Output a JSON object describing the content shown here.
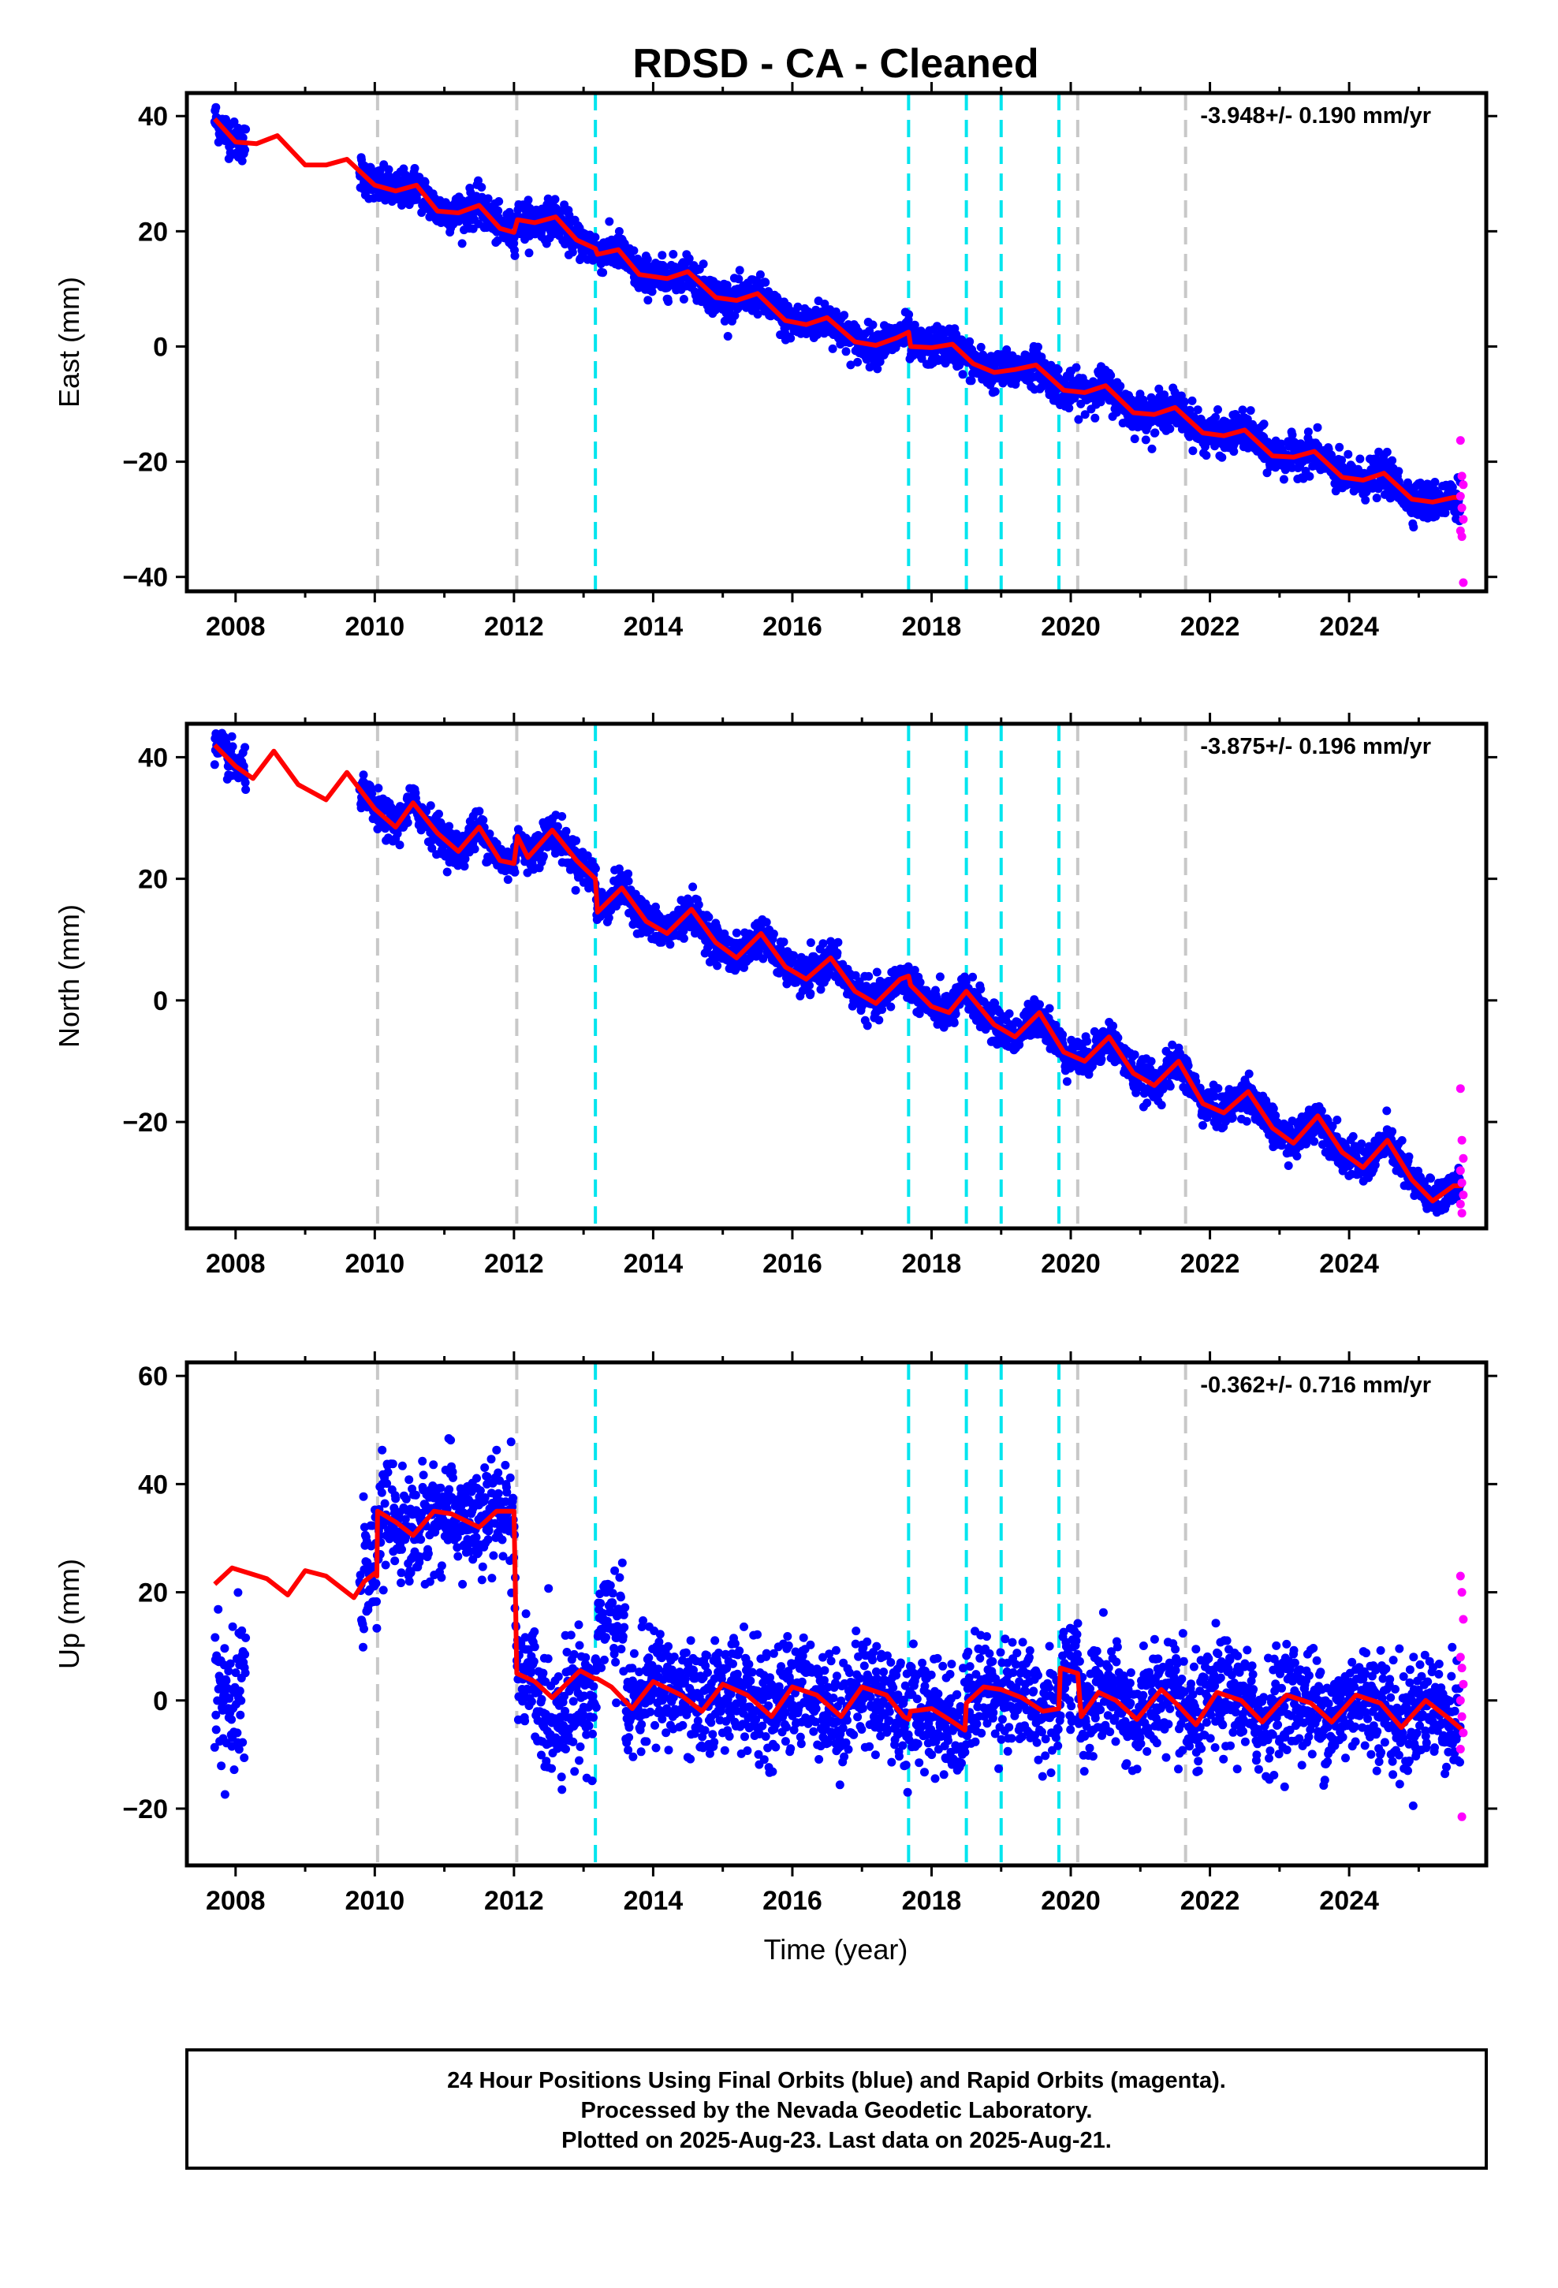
{
  "title": "RDSD  - CA - Cleaned",
  "x_axis_title": "Time (year)",
  "footer": {
    "line1": "24 Hour Positions Using Final Orbits (blue) and Rapid Orbits (magenta).",
    "line2": "Processed by the Nevada Geodetic Laboratory.",
    "line3": "Plotted on 2025-Aug-23. Last data on 2025-Aug-21."
  },
  "colors": {
    "final_points": "#0000ff",
    "rapid_points": "#ff00ff",
    "model_line": "#ff0000",
    "antenna_change_lines": "#00e5ee",
    "equipment_lines": "#c8c8c8"
  },
  "event_lines": {
    "cyan": [
      2013.17,
      2017.67,
      2018.5,
      2019.0,
      2019.83
    ],
    "gray": [
      2010.04,
      2012.04,
      2020.1,
      2021.65
    ]
  },
  "chart_data": [
    {
      "type": "scatter",
      "component": "East",
      "ylabel": "East (mm)",
      "rate_text": "-3.948+/- 0.190 mm/yr",
      "xlim": [
        2007.3,
        2025.97
      ],
      "ylim": [
        -42.5,
        44
      ],
      "x_ticks": [
        2008,
        2010,
        2012,
        2014,
        2016,
        2018,
        2020,
        2022,
        2024
      ],
      "y_ticks": [
        -40,
        -20,
        0,
        20,
        40
      ],
      "rate_mm_per_yr": -3.948,
      "model_knots": [
        [
          2007.7,
          39.5
        ],
        [
          2008.0,
          35.5
        ],
        [
          2008.3,
          35.2
        ],
        [
          2008.6,
          36.6
        ],
        [
          2009.0,
          31.5
        ],
        [
          2009.3,
          31.5
        ],
        [
          2009.6,
          32.5
        ],
        [
          2010.0,
          28.0
        ],
        [
          2010.3,
          27.0
        ],
        [
          2010.6,
          28.0
        ],
        [
          2010.9,
          23.5
        ],
        [
          2011.2,
          23.2
        ],
        [
          2011.5,
          24.5
        ],
        [
          2011.8,
          20.5
        ],
        [
          2012.0,
          19.8
        ],
        [
          2012.05,
          22.0
        ],
        [
          2012.3,
          21.5
        ],
        [
          2012.6,
          22.5
        ],
        [
          2012.9,
          18.5
        ],
        [
          2013.17,
          17.0
        ],
        [
          2013.2,
          16.0
        ],
        [
          2013.5,
          16.8
        ],
        [
          2013.8,
          12.5
        ],
        [
          2014.2,
          11.8
        ],
        [
          2014.5,
          13.0
        ],
        [
          2014.9,
          8.5
        ],
        [
          2015.2,
          8.0
        ],
        [
          2015.5,
          9.2
        ],
        [
          2015.9,
          4.5
        ],
        [
          2016.2,
          3.8
        ],
        [
          2016.5,
          5.0
        ],
        [
          2016.9,
          0.8
        ],
        [
          2017.2,
          0.2
        ],
        [
          2017.5,
          1.5
        ],
        [
          2017.67,
          2.5
        ],
        [
          2017.7,
          0.0
        ],
        [
          2018.0,
          -0.2
        ],
        [
          2018.3,
          0.4
        ],
        [
          2018.6,
          -3.0
        ],
        [
          2018.9,
          -4.5
        ],
        [
          2019.2,
          -4.0
        ],
        [
          2019.5,
          -3.2
        ],
        [
          2019.9,
          -7.6
        ],
        [
          2020.2,
          -8.0
        ],
        [
          2020.5,
          -6.8
        ],
        [
          2020.9,
          -11.5
        ],
        [
          2021.2,
          -11.8
        ],
        [
          2021.5,
          -10.6
        ],
        [
          2021.9,
          -15.0
        ],
        [
          2022.2,
          -15.5
        ],
        [
          2022.5,
          -14.5
        ],
        [
          2022.9,
          -19.0
        ],
        [
          2023.2,
          -19.2
        ],
        [
          2023.5,
          -18.2
        ],
        [
          2023.9,
          -22.7
        ],
        [
          2024.2,
          -23.2
        ],
        [
          2024.5,
          -22.0
        ],
        [
          2024.9,
          -26.5
        ],
        [
          2025.2,
          -27.0
        ],
        [
          2025.5,
          -26.2
        ],
        [
          2025.63,
          -26.2
        ]
      ],
      "final_scatter_mm": 1.6,
      "rapid_points": [
        -16.3,
        -22.5,
        -24.0,
        -26.0,
        -28.0,
        -30.0,
        -32.0,
        -33.0,
        -41.0
      ]
    },
    {
      "type": "scatter",
      "component": "North",
      "ylabel": "North (mm)",
      "rate_text": "-3.875+/- 0.196 mm/yr",
      "xlim": [
        2007.3,
        2025.97
      ],
      "ylim": [
        -37.5,
        45.5
      ],
      "x_ticks": [
        2008,
        2010,
        2012,
        2014,
        2016,
        2018,
        2020,
        2022,
        2024
      ],
      "y_ticks": [
        -20,
        0,
        20,
        40
      ],
      "rate_mm_per_yr": -3.875,
      "model_knots": [
        [
          2007.7,
          42.0
        ],
        [
          2008.0,
          38.5
        ],
        [
          2008.25,
          36.5
        ],
        [
          2008.55,
          41.0
        ],
        [
          2008.9,
          35.5
        ],
        [
          2009.3,
          33.0
        ],
        [
          2009.6,
          37.5
        ],
        [
          2010.0,
          31.5
        ],
        [
          2010.3,
          28.5
        ],
        [
          2010.55,
          32.5
        ],
        [
          2010.9,
          27.5
        ],
        [
          2011.2,
          24.5
        ],
        [
          2011.5,
          28.5
        ],
        [
          2011.8,
          23.0
        ],
        [
          2012.0,
          22.5
        ],
        [
          2012.05,
          27.0
        ],
        [
          2012.2,
          23.5
        ],
        [
          2012.55,
          28.0
        ],
        [
          2012.9,
          23.0
        ],
        [
          2013.17,
          20.0
        ],
        [
          2013.2,
          14.5
        ],
        [
          2013.55,
          18.5
        ],
        [
          2013.9,
          13.0
        ],
        [
          2014.2,
          11.0
        ],
        [
          2014.55,
          15.0
        ],
        [
          2014.9,
          9.5
        ],
        [
          2015.2,
          7.0
        ],
        [
          2015.55,
          11.0
        ],
        [
          2015.9,
          5.5
        ],
        [
          2016.2,
          3.5
        ],
        [
          2016.55,
          7.0
        ],
        [
          2016.9,
          1.5
        ],
        [
          2017.2,
          -0.5
        ],
        [
          2017.55,
          3.5
        ],
        [
          2017.67,
          4.0
        ],
        [
          2017.7,
          2.5
        ],
        [
          2018.0,
          -1.0
        ],
        [
          2018.25,
          -2.0
        ],
        [
          2018.5,
          1.5
        ],
        [
          2018.9,
          -4.0
        ],
        [
          2019.2,
          -6.0
        ],
        [
          2019.55,
          -2.0
        ],
        [
          2019.9,
          -8.5
        ],
        [
          2020.2,
          -10.0
        ],
        [
          2020.55,
          -6.0
        ],
        [
          2020.9,
          -12.0
        ],
        [
          2021.2,
          -14.0
        ],
        [
          2021.55,
          -10.0
        ],
        [
          2021.9,
          -17.0
        ],
        [
          2022.2,
          -18.5
        ],
        [
          2022.55,
          -15.0
        ],
        [
          2022.9,
          -21.0
        ],
        [
          2023.2,
          -23.5
        ],
        [
          2023.55,
          -19.0
        ],
        [
          2023.9,
          -25.0
        ],
        [
          2024.2,
          -27.5
        ],
        [
          2024.55,
          -23.0
        ],
        [
          2024.9,
          -29.5
        ],
        [
          2025.2,
          -33.0
        ],
        [
          2025.5,
          -30.5
        ],
        [
          2025.63,
          -30.5
        ]
      ],
      "final_scatter_mm": 1.5,
      "rapid_points": [
        -14.5,
        -23.0,
        -26.0,
        -28.0,
        -30.0,
        -32.0,
        -33.5,
        -35.0
      ]
    },
    {
      "type": "scatter",
      "component": "Up",
      "ylabel": "Up (mm)",
      "rate_text": "-0.362+/- 0.716 mm/yr",
      "xlim": [
        2007.3,
        2025.97
      ],
      "ylim": [
        -30.5,
        62.5
      ],
      "x_ticks": [
        2008,
        2010,
        2012,
        2014,
        2016,
        2018,
        2020,
        2022,
        2024
      ],
      "y_ticks": [
        -20,
        0,
        20,
        40,
        60
      ],
      "rate_mm_per_yr": -0.362,
      "model_knots": [
        [
          2007.7,
          21.5
        ],
        [
          2007.95,
          24.5
        ],
        [
          2008.2,
          23.5
        ],
        [
          2008.45,
          22.5
        ],
        [
          2008.75,
          19.5
        ],
        [
          2009.0,
          24.0
        ],
        [
          2009.3,
          23.0
        ],
        [
          2009.55,
          20.5
        ],
        [
          2009.7,
          19.0
        ],
        [
          2009.85,
          22.0
        ],
        [
          2010.0,
          23.5
        ],
        [
          2010.03,
          23.0
        ],
        [
          2010.04,
          35.0
        ],
        [
          2010.3,
          33.0
        ],
        [
          2010.55,
          30.5
        ],
        [
          2010.85,
          35.0
        ],
        [
          2011.1,
          34.5
        ],
        [
          2011.5,
          32.0
        ],
        [
          2011.75,
          35.0
        ],
        [
          2012.0,
          35.0
        ],
        [
          2012.04,
          5.0
        ],
        [
          2012.3,
          3.5
        ],
        [
          2012.55,
          0.5
        ],
        [
          2012.95,
          5.5
        ],
        [
          2013.17,
          4.0
        ],
        [
          2013.2,
          4.0
        ],
        [
          2013.4,
          2.5
        ],
        [
          2013.7,
          -1.5
        ],
        [
          2014.0,
          3.5
        ],
        [
          2014.4,
          1.0
        ],
        [
          2014.7,
          -2.0
        ],
        [
          2015.0,
          3.0
        ],
        [
          2015.35,
          1.0
        ],
        [
          2015.7,
          -3.0
        ],
        [
          2016.0,
          2.5
        ],
        [
          2016.35,
          1.0
        ],
        [
          2016.7,
          -3.0
        ],
        [
          2017.0,
          2.5
        ],
        [
          2017.35,
          1.0
        ],
        [
          2017.6,
          -3.0
        ],
        [
          2017.67,
          -3.5
        ],
        [
          2017.7,
          -2.0
        ],
        [
          2018.0,
          -1.5
        ],
        [
          2018.25,
          -3.5
        ],
        [
          2018.48,
          -5.5
        ],
        [
          2018.5,
          -0.5
        ],
        [
          2018.75,
          2.5
        ],
        [
          2019.0,
          2.0
        ],
        [
          2019.3,
          0.5
        ],
        [
          2019.6,
          -2.0
        ],
        [
          2019.83,
          -1.5
        ],
        [
          2019.85,
          6.0
        ],
        [
          2020.1,
          5.0
        ],
        [
          2020.15,
          -3.0
        ],
        [
          2020.4,
          1.5
        ],
        [
          2020.65,
          0.0
        ],
        [
          2020.95,
          -3.5
        ],
        [
          2021.3,
          2.0
        ],
        [
          2021.55,
          -1.0
        ],
        [
          2021.8,
          -4.5
        ],
        [
          2022.1,
          1.5
        ],
        [
          2022.45,
          0.0
        ],
        [
          2022.75,
          -4.0
        ],
        [
          2023.1,
          1.0
        ],
        [
          2023.45,
          -0.5
        ],
        [
          2023.75,
          -4.0
        ],
        [
          2024.1,
          1.0
        ],
        [
          2024.45,
          -0.5
        ],
        [
          2024.75,
          -5.0
        ],
        [
          2025.1,
          0.0
        ],
        [
          2025.45,
          -3.5
        ],
        [
          2025.63,
          -5.5
        ]
      ],
      "final_scatter_mm": 5.0,
      "rapid_points": [
        23.0,
        20.0,
        15.0,
        8.0,
        6.0,
        3.0,
        0.0,
        -3.0,
        -6.0,
        -9.0,
        -21.5
      ]
    }
  ]
}
